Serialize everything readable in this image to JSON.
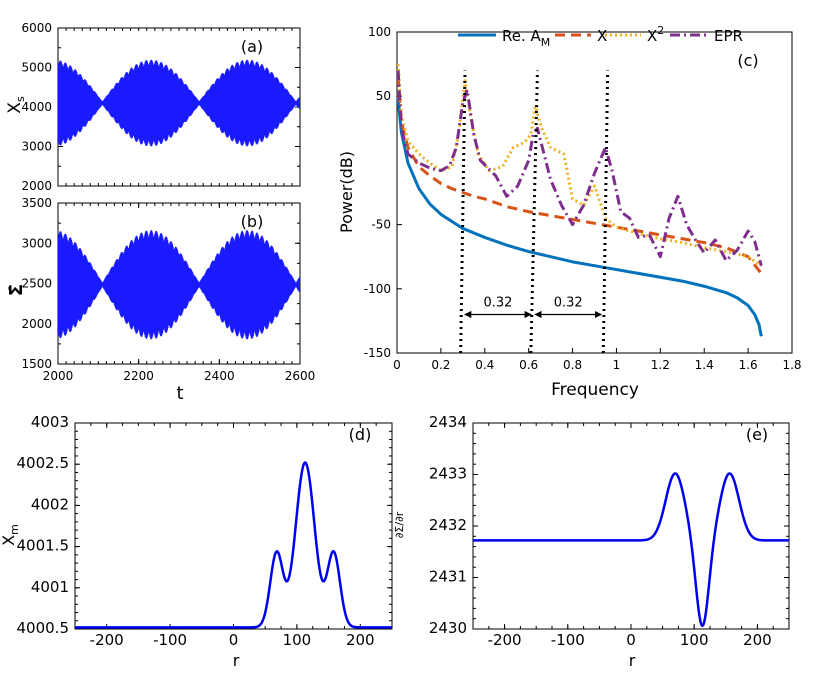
{
  "chart_data": [
    {
      "id": "a",
      "type": "line",
      "panel_label": "(a)",
      "xlabel": "",
      "ylabel": "X_s",
      "xlim": [
        2000,
        2600
      ],
      "ylim": [
        2000,
        6000
      ],
      "yticks": [
        2000,
        3000,
        4000,
        5000,
        6000
      ],
      "xticks": [],
      "series": [
        {
          "name": "X_s",
          "color": "#1a1aff",
          "center": 4100,
          "amplitude": 1100,
          "beat_nodes": [
            2110,
            2350,
            2600
          ]
        }
      ]
    },
    {
      "id": "b",
      "type": "line",
      "panel_label": "(b)",
      "xlabel": "t",
      "ylabel": "Σ̇",
      "xlim": [
        2000,
        2600
      ],
      "ylim": [
        1500,
        3500
      ],
      "yticks": [
        1500,
        2000,
        2500,
        3000,
        3500
      ],
      "xticks": [
        2000,
        2200,
        2400,
        2600
      ],
      "series": [
        {
          "name": "Sigma_dot",
          "color": "#1a1aff",
          "center": 2485,
          "amplitude": 680,
          "beat_nodes": [
            2110,
            2350,
            2600
          ]
        }
      ]
    },
    {
      "id": "c",
      "type": "line",
      "panel_label": "(c)",
      "xlabel": "Frequency",
      "ylabel": "Power(dB)",
      "xlim": [
        0,
        1.8
      ],
      "ylim": [
        -150,
        100
      ],
      "xticks": [
        0,
        0.2,
        0.4,
        0.6,
        0.8,
        1,
        1.2,
        1.4,
        1.6,
        1.8
      ],
      "yticks": [
        -150,
        -100,
        -50,
        50,
        100
      ],
      "legend": [
        {
          "label": "Re. A",
          "sub": "M",
          "sup": "",
          "color": "#0072bd",
          "style": "solid"
        },
        {
          "label": "X",
          "sub": "",
          "sup": "",
          "color": "#d95319",
          "style": "dashed"
        },
        {
          "label": "X",
          "sub": "",
          "sup": "2",
          "color": "#edb120",
          "style": "dotted"
        },
        {
          "label": "EPR",
          "sub": "",
          "sup": "",
          "color": "#7e2f8e",
          "style": "dashdot"
        }
      ],
      "series": [
        {
          "name": "Re. A_M",
          "color": "#0072bd",
          "x": [
            0.005,
            0.02,
            0.05,
            0.1,
            0.15,
            0.2,
            0.3,
            0.4,
            0.5,
            0.6,
            0.7,
            0.8,
            0.9,
            1.0,
            1.1,
            1.2,
            1.3,
            1.4,
            1.5,
            1.55,
            1.6,
            1.63,
            1.65,
            1.66
          ],
          "y": [
            48,
            22,
            -2,
            -22,
            -34,
            -42,
            -53,
            -60,
            -66,
            -71,
            -75,
            -79,
            -82,
            -85,
            -88,
            -91,
            -94,
            -98,
            -103,
            -107,
            -113,
            -120,
            -128,
            -137
          ]
        },
        {
          "name": "X",
          "color": "#d95319",
          "x": [
            0.005,
            0.02,
            0.05,
            0.1,
            0.15,
            0.2,
            0.25,
            0.3,
            0.35,
            0.4,
            0.5,
            0.6,
            0.7,
            0.8,
            0.9,
            1.0,
            1.1,
            1.2,
            1.3,
            1.4,
            1.5,
            1.6,
            1.66
          ],
          "y": [
            65,
            30,
            10,
            -5,
            -12,
            -18,
            -22,
            -25,
            -28,
            -30,
            -36,
            -40,
            -43,
            -46,
            -49,
            -52,
            -55,
            -58,
            -61,
            -64,
            -68,
            -75,
            -88
          ]
        },
        {
          "name": "X^2",
          "color": "#edb120",
          "x": [
            0.005,
            0.02,
            0.05,
            0.1,
            0.15,
            0.2,
            0.25,
            0.28,
            0.31,
            0.34,
            0.37,
            0.42,
            0.48,
            0.53,
            0.58,
            0.61,
            0.63,
            0.66,
            0.7,
            0.76,
            0.8,
            0.85,
            0.9,
            0.95,
            1.0,
            1.1,
            1.2,
            1.3,
            1.4,
            1.5,
            1.6,
            1.66
          ],
          "y": [
            75,
            35,
            15,
            5,
            -2,
            -8,
            -5,
            20,
            62,
            30,
            5,
            -8,
            -5,
            10,
            14,
            20,
            42,
            25,
            10,
            5,
            -30,
            -35,
            -20,
            -45,
            -52,
            -57,
            -61,
            -64,
            -68,
            -71,
            -75,
            -82
          ]
        },
        {
          "name": "EPR",
          "color": "#7e2f8e",
          "x": [
            0.005,
            0.02,
            0.05,
            0.1,
            0.15,
            0.2,
            0.24,
            0.27,
            0.3,
            0.32,
            0.35,
            0.38,
            0.45,
            0.5,
            0.55,
            0.6,
            0.62,
            0.64,
            0.67,
            0.7,
            0.75,
            0.8,
            0.85,
            0.9,
            0.95,
            0.98,
            1.02,
            1.06,
            1.1,
            1.15,
            1.2,
            1.24,
            1.28,
            1.32,
            1.36,
            1.4,
            1.45,
            1.5,
            1.55,
            1.6,
            1.63,
            1.66
          ],
          "y": [
            70,
            25,
            5,
            -2,
            -6,
            -8,
            -4,
            10,
            45,
            55,
            20,
            0,
            -12,
            -28,
            -20,
            0,
            20,
            25,
            5,
            -15,
            -35,
            -50,
            -35,
            -10,
            10,
            -8,
            -40,
            -45,
            -60,
            -58,
            -75,
            -45,
            -28,
            -50,
            -62,
            -72,
            -62,
            -78,
            -70,
            -55,
            -63,
            -82
          ]
        }
      ],
      "peak_guides": [
        {
          "x_bottom": 0.29,
          "x_top": 0.31
        },
        {
          "x_bottom": 0.61,
          "x_top": 0.64
        },
        {
          "x_bottom": 0.94,
          "x_top": 0.96
        }
      ],
      "annotations": [
        {
          "text": "0.32",
          "x_from": 0.3,
          "x_to": 0.62,
          "y": -120
        },
        {
          "text": "0.32",
          "x_from": 0.62,
          "x_to": 0.94,
          "y": -120
        }
      ]
    },
    {
      "id": "d",
      "type": "line",
      "panel_label": "(d)",
      "xlabel": "r",
      "ylabel": "X_m",
      "xlim": [
        -250,
        250
      ],
      "ylim": [
        4000.5,
        4003
      ],
      "xticks": [
        -200,
        -100,
        0,
        100,
        200
      ],
      "yticks": [
        4000.5,
        4001,
        4001.5,
        4002,
        4002.5,
        4003
      ],
      "ytick_labels": [
        "4000.5",
        "4001",
        "4001.5",
        "4002",
        "4002.5",
        "4003"
      ],
      "series": [
        {
          "name": "X_m",
          "color": "#0000ee",
          "baseline": 4000.52,
          "gaussians": [
            {
              "mu": 68,
              "sigma": 10,
              "amp": 0.9
            },
            {
              "mu": 113,
              "sigma": 15,
              "amp": 2.0
            },
            {
              "mu": 158,
              "sigma": 10,
              "amp": 0.9
            }
          ]
        }
      ]
    },
    {
      "id": "e",
      "type": "line",
      "panel_label": "(e)",
      "xlabel": "r",
      "ylabel": "∂Σ/∂r",
      "xlim": [
        -250,
        250
      ],
      "ylim": [
        2430,
        2434
      ],
      "xticks": [
        -200,
        -100,
        0,
        100,
        200
      ],
      "yticks": [
        2430,
        2431,
        2432,
        2433,
        2434
      ],
      "series": [
        {
          "name": "dSigma_dr",
          "color": "#0000ee",
          "baseline": 2431.72,
          "gaussians": [
            {
              "mu": 70,
              "sigma": 15,
              "amp": 1.3
            },
            {
              "mu": 113,
              "sigma": 10,
              "amp": -1.7
            },
            {
              "mu": 156,
              "sigma": 15,
              "amp": 1.3
            }
          ]
        }
      ]
    }
  ]
}
